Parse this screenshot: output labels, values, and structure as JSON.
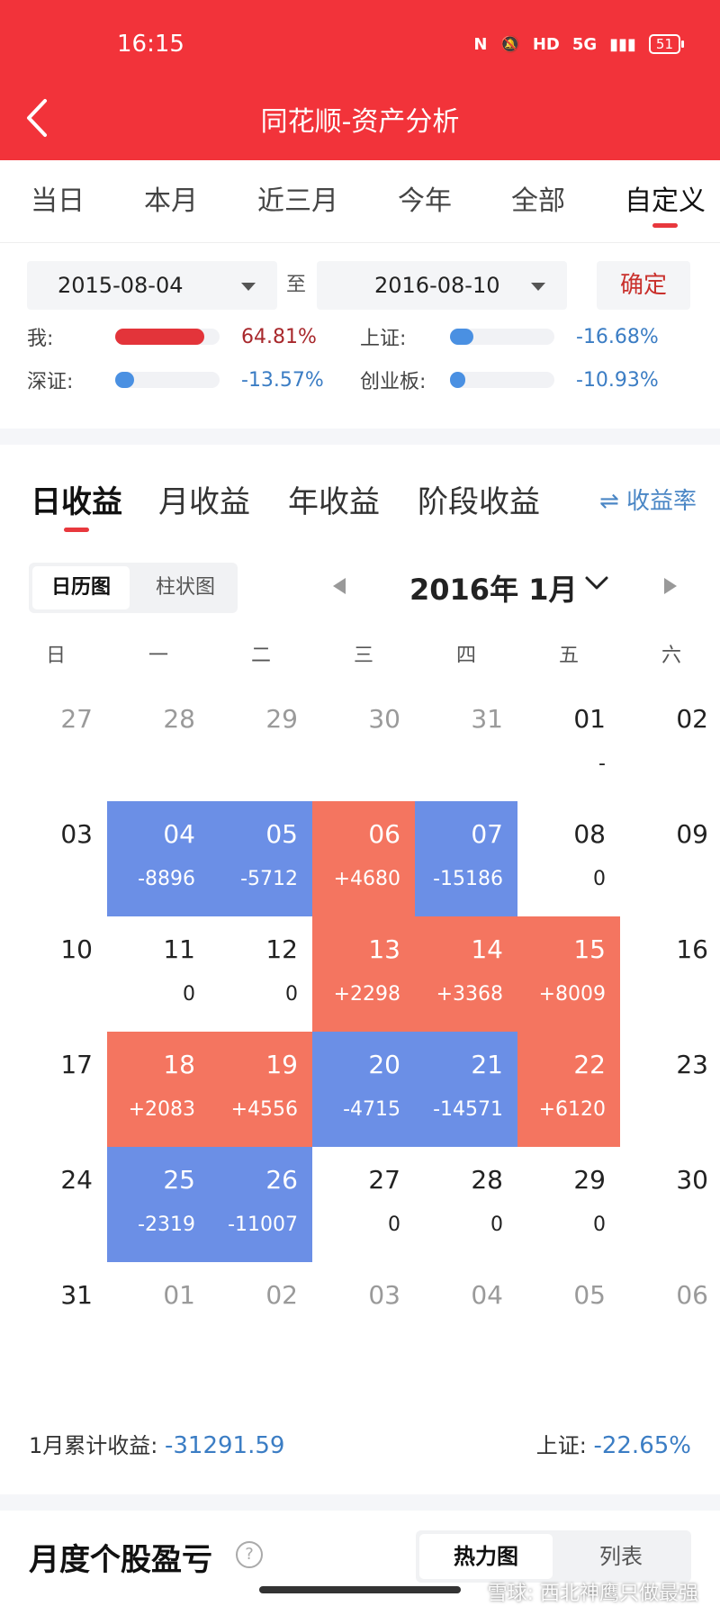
{
  "status_bar": {
    "time": "16:15",
    "icons": [
      "N",
      "🔕",
      "HD",
      "5G",
      "▮▮▮"
    ],
    "battery": "51"
  },
  "header": {
    "title": "同花顺-资产分析",
    "back_icon": "chevron-left-icon"
  },
  "range_tabs": [
    {
      "label": "当日"
    },
    {
      "label": "本月"
    },
    {
      "label": "近三月"
    },
    {
      "label": "今年"
    },
    {
      "label": "全部"
    },
    {
      "label": "自定义"
    }
  ],
  "active_range": 5,
  "date_range": {
    "from": "2015-08-04",
    "sep": "至",
    "to": "2016-08-10",
    "confirm": "确定"
  },
  "comparison": [
    {
      "label": "我:",
      "value": "64.81%",
      "fill": 0.85,
      "color": "#e3343a",
      "text_color": "#a8282c"
    },
    {
      "label": "上证:",
      "value": "-16.68%",
      "fill": 0.22,
      "color": "#4a90e2",
      "text_color": "#3b7dc4"
    },
    {
      "label": "深证:",
      "value": "-13.57%",
      "fill": 0.18,
      "color": "#4a90e2",
      "text_color": "#3b7dc4"
    },
    {
      "label": "创业板:",
      "value": "-10.93%",
      "fill": 0.15,
      "color": "#4a90e2",
      "text_color": "#3b7dc4"
    }
  ],
  "earnings_tabs": [
    {
      "label": "日收益"
    },
    {
      "label": "月收益"
    },
    {
      "label": "年收益"
    },
    {
      "label": "阶段收益"
    }
  ],
  "rate_toggle": "⇌ 收益率",
  "view_toggle": {
    "calendar": "日历图",
    "bar": "柱状图"
  },
  "month_nav": {
    "label": "2016年 1月"
  },
  "weekdays": [
    "日",
    "一",
    "二",
    "三",
    "四",
    "五",
    "六"
  ],
  "calendar": [
    [
      {
        "day": "27",
        "dim": true
      },
      {
        "day": "28",
        "dim": true
      },
      {
        "day": "29",
        "dim": true
      },
      {
        "day": "30",
        "dim": true
      },
      {
        "day": "31",
        "dim": true
      },
      {
        "day": "01",
        "value": "-"
      },
      {
        "day": "02"
      }
    ],
    [
      {
        "day": "03"
      },
      {
        "day": "04",
        "value": "-8896",
        "type": "neg"
      },
      {
        "day": "05",
        "value": "-5712",
        "type": "neg"
      },
      {
        "day": "06",
        "value": "+4680",
        "type": "pos"
      },
      {
        "day": "07",
        "value": "-15186",
        "type": "neg"
      },
      {
        "day": "08",
        "value": "0"
      },
      {
        "day": "09"
      }
    ],
    [
      {
        "day": "10"
      },
      {
        "day": "11",
        "value": "0"
      },
      {
        "day": "12",
        "value": "0"
      },
      {
        "day": "13",
        "value": "+2298",
        "type": "pos"
      },
      {
        "day": "14",
        "value": "+3368",
        "type": "pos"
      },
      {
        "day": "15",
        "value": "+8009",
        "type": "pos"
      },
      {
        "day": "16"
      }
    ],
    [
      {
        "day": "17"
      },
      {
        "day": "18",
        "value": "+2083",
        "type": "pos"
      },
      {
        "day": "19",
        "value": "+4556",
        "type": "pos"
      },
      {
        "day": "20",
        "value": "-4715",
        "type": "neg"
      },
      {
        "day": "21",
        "value": "-14571",
        "type": "neg"
      },
      {
        "day": "22",
        "value": "+6120",
        "type": "pos"
      },
      {
        "day": "23"
      }
    ],
    [
      {
        "day": "24"
      },
      {
        "day": "25",
        "value": "-2319",
        "type": "neg"
      },
      {
        "day": "26",
        "value": "-11007",
        "type": "neg"
      },
      {
        "day": "27",
        "value": "0"
      },
      {
        "day": "28",
        "value": "0"
      },
      {
        "day": "29",
        "value": "0"
      },
      {
        "day": "30"
      }
    ],
    [
      {
        "day": "31"
      },
      {
        "day": "01",
        "dim": true
      },
      {
        "day": "02",
        "dim": true
      },
      {
        "day": "03",
        "dim": true
      },
      {
        "day": "04",
        "dim": true
      },
      {
        "day": "05",
        "dim": true
      },
      {
        "day": "06",
        "dim": true
      }
    ]
  ],
  "summary": {
    "label": "1月累计收益:",
    "value": "-31291.59",
    "index_label": "上证:",
    "index_value": "-22.65%"
  },
  "monthly_section": {
    "title": "月度个股盈亏",
    "help": "?",
    "heatmap": "热力图",
    "list": "列表"
  },
  "watermark": "雪球: 西北神鹰只做最强"
}
